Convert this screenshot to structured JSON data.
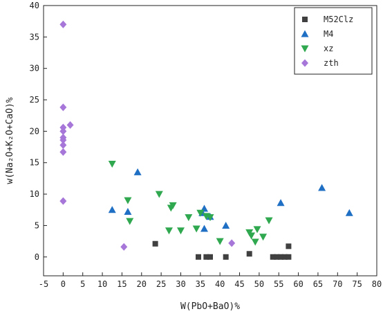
{
  "chart_data": {
    "type": "scatter",
    "xlabel": "W(PbO+BaO)%",
    "ylabel": "w(Na₂O+K₂O+CaO)%",
    "xlim": [
      -5,
      80
    ],
    "ylim": [
      -3,
      40
    ],
    "xticks": [
      -5,
      0,
      5,
      10,
      15,
      20,
      25,
      30,
      35,
      40,
      45,
      50,
      55,
      60,
      65,
      70,
      75,
      80
    ],
    "yticks": [
      0,
      5,
      10,
      15,
      20,
      25,
      30,
      35,
      40
    ],
    "grid": false,
    "legend_position": "top-right",
    "series": [
      {
        "name": "M52Clz",
        "marker": "square",
        "color": "#404040",
        "points": [
          [
            23.5,
            2.1
          ],
          [
            34.5,
            0
          ],
          [
            36.5,
            0
          ],
          [
            37.5,
            0
          ],
          [
            41.5,
            0
          ],
          [
            47.5,
            0.5
          ],
          [
            53.5,
            0
          ],
          [
            54.5,
            0
          ],
          [
            55.5,
            0
          ],
          [
            56.5,
            0
          ],
          [
            57.5,
            0
          ],
          [
            57.5,
            1.7
          ]
        ]
      },
      {
        "name": "M4",
        "marker": "triangle-up",
        "color": "#1f6fc4",
        "points": [
          [
            12.5,
            7.5
          ],
          [
            16.5,
            7.2
          ],
          [
            19.0,
            13.5
          ],
          [
            35.5,
            7.0
          ],
          [
            36.0,
            7.7
          ],
          [
            36.0,
            4.5
          ],
          [
            37.5,
            6.4
          ],
          [
            41.5,
            5.0
          ],
          [
            55.5,
            8.6
          ],
          [
            66.0,
            11.0
          ],
          [
            73.0,
            7.0
          ]
        ]
      },
      {
        "name": "xz",
        "marker": "triangle-down",
        "color": "#2fa84f",
        "points": [
          [
            12.5,
            14.8
          ],
          [
            16.5,
            9.0
          ],
          [
            17.0,
            5.7
          ],
          [
            24.5,
            10.0
          ],
          [
            27.0,
            4.2
          ],
          [
            27.5,
            7.8
          ],
          [
            28.0,
            8.2
          ],
          [
            30.0,
            4.2
          ],
          [
            32.0,
            6.3
          ],
          [
            34.0,
            4.5
          ],
          [
            35.0,
            7.0
          ],
          [
            36.5,
            6.5
          ],
          [
            37.5,
            6.3
          ],
          [
            40.0,
            2.5
          ],
          [
            47.5,
            3.9
          ],
          [
            48.0,
            3.4
          ],
          [
            49.0,
            2.4
          ],
          [
            49.5,
            4.4
          ],
          [
            51.0,
            3.2
          ],
          [
            52.5,
            5.8
          ]
        ]
      },
      {
        "name": "zth",
        "marker": "diamond",
        "color": "#a676d9",
        "points": [
          [
            0,
            37.0
          ],
          [
            0,
            23.8
          ],
          [
            0,
            20.6
          ],
          [
            0,
            20.0
          ],
          [
            0,
            19.0
          ],
          [
            0,
            18.6
          ],
          [
            0,
            17.8
          ],
          [
            0,
            16.7
          ],
          [
            0,
            8.9
          ],
          [
            1.8,
            21.0
          ],
          [
            15.5,
            1.6
          ],
          [
            43.0,
            2.2
          ]
        ]
      }
    ]
  }
}
